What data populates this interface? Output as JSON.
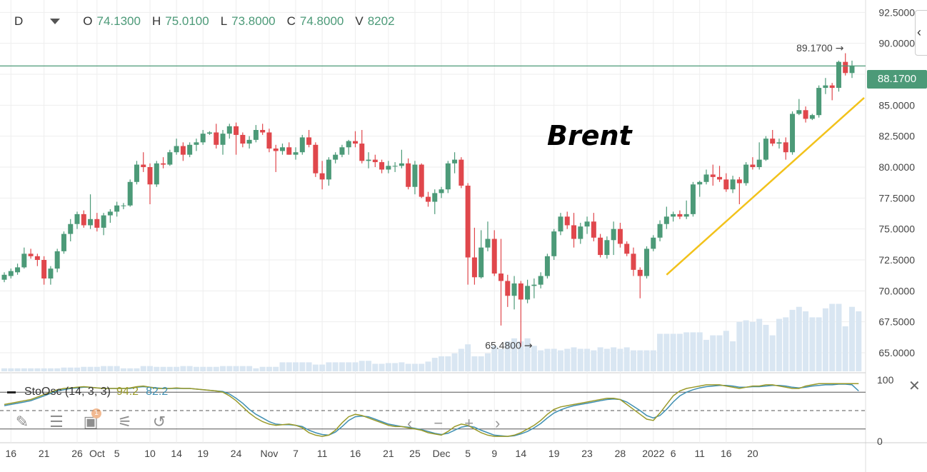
{
  "header": {
    "timeframe": "D",
    "open_label": "O",
    "open_value": "74.1300",
    "high_label": "H",
    "high_value": "75.0100",
    "low_label": "L",
    "low_value": "73.8000",
    "close_label": "C",
    "close_value": "74.8000",
    "volume_label": "V",
    "volume_value": "8202"
  },
  "annotation_title": "Brent",
  "current_price_tag": "88.1700",
  "stochastic": {
    "label": "StoOsc (14, 3, 3)",
    "k_value": "94.2",
    "d_value": "82.2"
  },
  "toolbar": {
    "objects_badge": "1"
  },
  "colors": {
    "up": "#4c9a78",
    "down": "#e0474c",
    "volume": "#d9e6f2",
    "trendline": "#f2c21b",
    "stoch_k": "#9a9a2a",
    "stoch_d": "#3f8fb2"
  },
  "chart_data": {
    "type": "candlestick",
    "title": "Brent",
    "y_ticks": [
      "92.5000",
      "90.0000",
      "87.5000",
      "85.0000",
      "82.5000",
      "80.0000",
      "77.5000",
      "75.0000",
      "72.5000",
      "70.0000",
      "67.5000",
      "65.0000"
    ],
    "ylim": [
      63.5,
      93.5
    ],
    "x_ticks": [
      "16",
      "21",
      "26",
      "Oct",
      "5",
      "10",
      "14",
      "19",
      "24",
      "Nov",
      "7",
      "11",
      "16",
      "21",
      "25",
      "Dec",
      "5",
      "9",
      "14",
      "19",
      "23",
      "28",
      "2022",
      "6",
      "11",
      "16",
      "20"
    ],
    "price_annotations": [
      {
        "label": "89.1700",
        "value": 89.17,
        "type": "high"
      },
      {
        "label": "65.4800",
        "value": 65.48,
        "type": "low"
      }
    ],
    "last_price": 88.17,
    "stoch_ticks": [
      "100",
      "0"
    ],
    "stoch_levels": [
      80,
      50,
      20
    ],
    "grid": true,
    "candles": [
      [
        70.9,
        71.5,
        70.7,
        71.3
      ],
      [
        71.2,
        71.8,
        71.0,
        71.6
      ],
      [
        71.5,
        72.2,
        71.3,
        71.9
      ],
      [
        71.9,
        73.5,
        71.8,
        73.0
      ],
      [
        73.0,
        73.4,
        72.6,
        72.8
      ],
      [
        72.8,
        73.0,
        72.0,
        72.5
      ],
      [
        72.5,
        72.8,
        70.5,
        71.0
      ],
      [
        71.0,
        72.0,
        70.5,
        71.8
      ],
      [
        71.8,
        73.4,
        71.5,
        73.2
      ],
      [
        73.2,
        74.8,
        73.0,
        74.6
      ],
      [
        74.6,
        75.8,
        74.0,
        75.4
      ],
      [
        75.4,
        76.4,
        75.0,
        76.2
      ],
      [
        76.2,
        76.5,
        75.1,
        75.3
      ],
      [
        75.3,
        77.8,
        75.0,
        75.8
      ],
      [
        75.8,
        76.3,
        74.8,
        75.1
      ],
      [
        75.1,
        76.3,
        74.5,
        76.1
      ],
      [
        76.1,
        76.6,
        75.5,
        76.4
      ],
      [
        76.4,
        77.2,
        76.0,
        76.9
      ],
      [
        76.9,
        77.1,
        76.6,
        76.9
      ],
      [
        76.9,
        79.0,
        76.8,
        78.8
      ],
      [
        78.8,
        80.5,
        78.6,
        80.2
      ],
      [
        80.2,
        81.2,
        79.6,
        80.0
      ],
      [
        80.0,
        80.3,
        77.0,
        78.6
      ],
      [
        78.6,
        80.5,
        78.4,
        80.3
      ],
      [
        80.3,
        80.8,
        79.9,
        80.2
      ],
      [
        80.2,
        81.4,
        80.1,
        81.2
      ],
      [
        81.2,
        82.3,
        81.0,
        81.7
      ],
      [
        81.7,
        82.0,
        80.5,
        81.0
      ],
      [
        81.0,
        82.0,
        80.8,
        81.8
      ],
      [
        81.8,
        82.3,
        81.3,
        82.0
      ],
      [
        82.0,
        83.0,
        81.8,
        82.7
      ],
      [
        82.7,
        82.9,
        82.6,
        82.8
      ],
      [
        82.8,
        83.5,
        81.5,
        81.8
      ],
      [
        81.8,
        83.0,
        81.0,
        82.7
      ],
      [
        82.7,
        83.5,
        82.3,
        83.3
      ],
      [
        83.3,
        83.6,
        81.0,
        82.6
      ],
      [
        82.6,
        82.8,
        81.6,
        81.9
      ],
      [
        81.9,
        82.5,
        81.5,
        82.2
      ],
      [
        82.2,
        83.4,
        82.0,
        83.0
      ],
      [
        83.0,
        83.5,
        82.6,
        82.8
      ],
      [
        82.8,
        83.1,
        81.2,
        81.5
      ],
      [
        81.5,
        81.8,
        79.6,
        81.3
      ],
      [
        81.3,
        81.9,
        81.0,
        81.6
      ],
      [
        81.6,
        82.0,
        81.0,
        81.0
      ],
      [
        81.0,
        81.6,
        80.6,
        81.2
      ],
      [
        81.2,
        82.6,
        81.0,
        82.4
      ],
      [
        82.4,
        83.0,
        81.6,
        81.8
      ],
      [
        81.8,
        82.0,
        79.2,
        79.5
      ],
      [
        79.5,
        80.5,
        78.2,
        79.0
      ],
      [
        79.0,
        80.8,
        78.5,
        80.6
      ],
      [
        80.6,
        81.2,
        80.3,
        81.0
      ],
      [
        81.0,
        81.8,
        80.8,
        81.6
      ],
      [
        81.6,
        82.2,
        81.0,
        82.1
      ],
      [
        82.1,
        82.9,
        81.6,
        81.9
      ],
      [
        81.9,
        83.0,
        80.3,
        80.5
      ],
      [
        80.5,
        81.2,
        79.9,
        80.6
      ],
      [
        80.6,
        81.0,
        80.0,
        80.4
      ],
      [
        80.4,
        80.6,
        79.5,
        79.8
      ],
      [
        79.8,
        80.5,
        79.5,
        80.1
      ],
      [
        80.1,
        80.4,
        79.6,
        80.1
      ],
      [
        80.1,
        81.4,
        79.9,
        80.3
      ],
      [
        80.3,
        80.7,
        78.2,
        78.4
      ],
      [
        78.4,
        80.5,
        77.8,
        80.2
      ],
      [
        80.2,
        80.3,
        77.5,
        77.6
      ],
      [
        77.6,
        78.0,
        76.8,
        77.2
      ],
      [
        77.2,
        78.2,
        76.2,
        77.9
      ],
      [
        77.9,
        78.4,
        77.5,
        78.2
      ],
      [
        78.2,
        80.5,
        77.9,
        80.3
      ],
      [
        80.3,
        81.2,
        79.5,
        80.6
      ],
      [
        80.6,
        80.8,
        78.3,
        78.5
      ],
      [
        78.5,
        78.7,
        70.5,
        72.7
      ],
      [
        72.7,
        75.1,
        70.5,
        71.1
      ],
      [
        71.1,
        74.9,
        71.0,
        73.5
      ],
      [
        73.5,
        75.6,
        73.2,
        74.2
      ],
      [
        74.2,
        74.9,
        71.2,
        71.4
      ],
      [
        71.4,
        74.2,
        67.2,
        70.8
      ],
      [
        70.8,
        71.3,
        68.7,
        69.6
      ],
      [
        69.6,
        71.2,
        68.5,
        70.6
      ],
      [
        70.6,
        70.8,
        65.5,
        69.3
      ],
      [
        69.3,
        70.9,
        69.0,
        70.4
      ],
      [
        70.4,
        71.0,
        69.4,
        70.5
      ],
      [
        70.5,
        71.5,
        70.2,
        71.2
      ],
      [
        71.2,
        73.0,
        71.0,
        72.8
      ],
      [
        72.8,
        75.0,
        72.5,
        74.8
      ],
      [
        74.8,
        76.3,
        74.5,
        76.0
      ],
      [
        76.0,
        76.4,
        75.0,
        75.3
      ],
      [
        75.3,
        76.3,
        73.5,
        74.2
      ],
      [
        74.2,
        75.5,
        73.8,
        75.2
      ],
      [
        75.2,
        76.0,
        74.6,
        75.6
      ],
      [
        75.6,
        76.3,
        74.0,
        74.3
      ],
      [
        74.3,
        74.6,
        72.7,
        72.9
      ],
      [
        72.9,
        74.4,
        72.6,
        74.1
      ],
      [
        74.1,
        75.6,
        72.9,
        75.0
      ],
      [
        75.0,
        75.5,
        73.5,
        73.8
      ],
      [
        73.8,
        74.0,
        72.8,
        73.0
      ],
      [
        73.0,
        73.5,
        71.2,
        71.7
      ],
      [
        71.7,
        71.9,
        69.4,
        71.2
      ],
      [
        71.2,
        73.6,
        71.0,
        73.4
      ],
      [
        73.4,
        74.5,
        73.2,
        74.3
      ],
      [
        74.3,
        75.7,
        74.0,
        75.4
      ],
      [
        75.4,
        76.8,
        75.0,
        76.0
      ],
      [
        76.0,
        76.4,
        75.6,
        76.2
      ],
      [
        76.2,
        76.5,
        75.8,
        76.0
      ],
      [
        76.0,
        77.3,
        75.8,
        76.2
      ],
      [
        76.2,
        78.8,
        76.0,
        78.6
      ],
      [
        78.6,
        78.9,
        77.6,
        78.8
      ],
      [
        78.8,
        79.8,
        78.6,
        79.4
      ],
      [
        79.4,
        80.2,
        78.5,
        79.2
      ],
      [
        79.2,
        80.1,
        78.8,
        79.0
      ],
      [
        79.0,
        79.5,
        78.0,
        78.2
      ],
      [
        78.2,
        79.3,
        77.9,
        79.0
      ],
      [
        79.0,
        79.2,
        77.0,
        78.7
      ],
      [
        78.7,
        80.4,
        78.5,
        80.2
      ],
      [
        80.2,
        80.8,
        79.8,
        80.0
      ],
      [
        80.0,
        82.0,
        79.8,
        80.6
      ],
      [
        80.6,
        82.5,
        80.5,
        82.3
      ],
      [
        82.3,
        83.0,
        81.7,
        81.9
      ],
      [
        81.9,
        82.3,
        81.5,
        82.0
      ],
      [
        82.0,
        82.4,
        80.6,
        81.2
      ],
      [
        81.2,
        84.5,
        81.0,
        84.3
      ],
      [
        84.3,
        85.5,
        84.2,
        84.6
      ],
      [
        84.6,
        84.9,
        83.6,
        83.9
      ],
      [
        83.9,
        84.3,
        83.8,
        84.2
      ],
      [
        84.2,
        86.6,
        84.0,
        86.4
      ],
      [
        86.4,
        87.2,
        85.9,
        86.6
      ],
      [
        86.6,
        86.8,
        85.4,
        86.4
      ],
      [
        86.4,
        88.6,
        86.1,
        88.5
      ],
      [
        88.5,
        89.2,
        87.4,
        87.6
      ],
      [
        87.6,
        88.6,
        87.2,
        88.2
      ]
    ],
    "volume_max_relative": 1.0,
    "volume": [
      0.04,
      0.04,
      0.04,
      0.04,
      0.04,
      0.04,
      0.04,
      0.04,
      0.04,
      0.05,
      0.05,
      0.05,
      0.06,
      0.06,
      0.06,
      0.07,
      0.07,
      0.07,
      0.04,
      0.04,
      0.04,
      0.07,
      0.07,
      0.06,
      0.06,
      0.06,
      0.06,
      0.07,
      0.07,
      0.06,
      0.06,
      0.06,
      0.06,
      0.07,
      0.07,
      0.07,
      0.07,
      0.07,
      0.04,
      0.06,
      0.06,
      0.06,
      0.12,
      0.12,
      0.12,
      0.12,
      0.12,
      0.09,
      0.09,
      0.12,
      0.12,
      0.12,
      0.12,
      0.12,
      0.14,
      0.14,
      0.1,
      0.1,
      0.11,
      0.11,
      0.12,
      0.1,
      0.1,
      0.1,
      0.13,
      0.18,
      0.2,
      0.2,
      0.24,
      0.3,
      0.36,
      0.2,
      0.2,
      0.24,
      0.34,
      0.3,
      0.4,
      0.44,
      0.4,
      0.44,
      0.34,
      0.28,
      0.3,
      0.3,
      0.28,
      0.3,
      0.32,
      0.3,
      0.3,
      0.28,
      0.32,
      0.3,
      0.32,
      0.3,
      0.32,
      0.28,
      0.28,
      0.28,
      0.28,
      0.5,
      0.5,
      0.5,
      0.5,
      0.52,
      0.52,
      0.52,
      0.42,
      0.48,
      0.48,
      0.54,
      0.4,
      0.66,
      0.68,
      0.66,
      0.7,
      0.62,
      0.48,
      0.7,
      0.72,
      0.82,
      0.86,
      0.8,
      0.72,
      0.72,
      0.84,
      0.9,
      0.9,
      0.6,
      0.86,
      0.8
    ],
    "stoch_k": [
      60,
      62,
      64,
      66,
      68,
      72,
      76,
      80,
      84,
      86,
      87,
      88,
      89,
      88,
      87,
      86,
      86,
      86,
      86,
      87,
      89,
      90,
      88,
      86,
      86,
      86,
      87,
      86,
      86,
      85,
      84,
      83,
      82,
      80,
      74,
      66,
      56,
      46,
      38,
      32,
      28,
      26,
      27,
      28,
      26,
      22,
      14,
      10,
      8,
      10,
      18,
      30,
      40,
      44,
      42,
      38,
      34,
      30,
      26,
      24,
      24,
      22,
      20,
      18,
      14,
      12,
      10,
      16,
      24,
      28,
      26,
      20,
      14,
      10,
      8,
      8,
      8,
      10,
      14,
      20,
      26,
      34,
      44,
      52,
      56,
      58,
      60,
      62,
      64,
      66,
      68,
      70,
      70,
      68,
      60,
      52,
      44,
      36,
      34,
      46,
      60,
      74,
      82,
      86,
      88,
      90,
      92,
      92,
      92,
      90,
      88,
      86,
      88,
      90,
      90,
      92,
      92,
      90,
      88,
      86,
      86,
      90,
      92,
      94,
      94,
      94,
      94,
      94,
      94,
      94
    ],
    "stoch_d": [
      58,
      60,
      62,
      64,
      66,
      70,
      74,
      78,
      82,
      84,
      86,
      87,
      88,
      88,
      87,
      86,
      86,
      86,
      86,
      86,
      88,
      89,
      88,
      87,
      86,
      86,
      86,
      86,
      86,
      85,
      84,
      83,
      82,
      81,
      77,
      70,
      62,
      52,
      44,
      38,
      32,
      28,
      27,
      27,
      26,
      24,
      18,
      14,
      11,
      10,
      15,
      24,
      34,
      40,
      41,
      40,
      36,
      32,
      28,
      26,
      24,
      23,
      21,
      19,
      16,
      13,
      11,
      13,
      18,
      23,
      25,
      23,
      18,
      14,
      10,
      9,
      8,
      9,
      12,
      16,
      22,
      29,
      38,
      46,
      51,
      55,
      58,
      60,
      62,
      64,
      66,
      68,
      69,
      68,
      64,
      57,
      50,
      42,
      38,
      42,
      52,
      64,
      74,
      80,
      84,
      87,
      89,
      90,
      91,
      91,
      90,
      88,
      88,
      89,
      89,
      90,
      91,
      91,
      90,
      88,
      87,
      88,
      90,
      91,
      92,
      92,
      93,
      93,
      92,
      82
    ]
  }
}
